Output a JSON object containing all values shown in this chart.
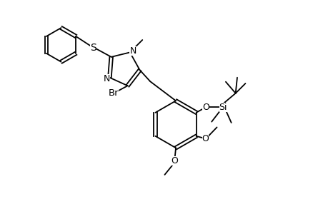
{
  "bg_color": "#ffffff",
  "line_color": "#000000",
  "line_width": 1.3,
  "font_size": 9,
  "fig_width": 4.6,
  "fig_height": 3.0,
  "dpi": 100,
  "xlim": [
    0,
    10
  ],
  "ylim": [
    0,
    6.5
  ]
}
